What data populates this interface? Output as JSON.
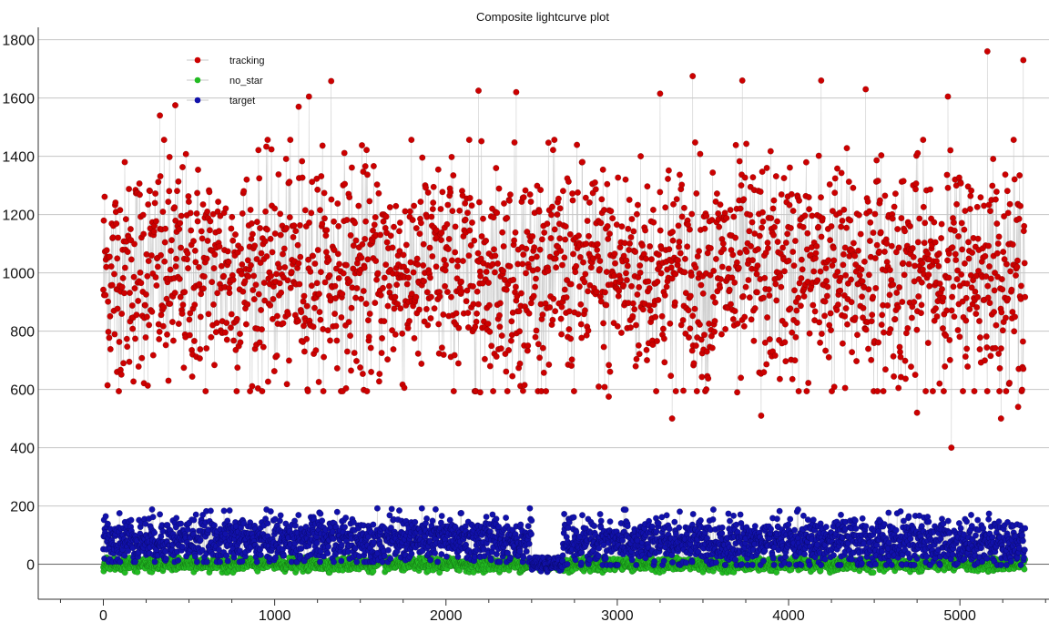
{
  "chart_data": {
    "type": "scatter",
    "title": "Composite lightcurve plot",
    "xlabel": "",
    "ylabel": "",
    "xlim": [
      -380,
      5520
    ],
    "ylim": [
      -120,
      1830
    ],
    "x_ticks": [
      0,
      1000,
      2000,
      3000,
      4000,
      5000
    ],
    "x_tick_labels": [
      "0",
      "1000",
      "2000",
      "3000",
      "4000",
      "5000"
    ],
    "y_ticks": [
      0,
      200,
      400,
      600,
      800,
      1000,
      1200,
      1400,
      1600,
      1800
    ],
    "y_tick_labels": [
      "0",
      "200",
      "400",
      "600",
      "800",
      "1000",
      "1200",
      "1400",
      "1600",
      "1800"
    ],
    "x_minor_step": 250,
    "grid": "horizontal",
    "legend_position": "top-left",
    "series": [
      {
        "name": "tracking",
        "color": "#cc0000",
        "marker": "circle",
        "connected": true,
        "connector_color": "#c8c8c8",
        "x_range": [
          0,
          5380
        ],
        "mean": 1000,
        "typical_range": [
          650,
          1400
        ],
        "outliers": [
          {
            "x": 330,
            "y": 1540
          },
          {
            "x": 420,
            "y": 1575
          },
          {
            "x": 1140,
            "y": 1570
          },
          {
            "x": 1200,
            "y": 1605
          },
          {
            "x": 1330,
            "y": 1658
          },
          {
            "x": 2190,
            "y": 1625
          },
          {
            "x": 2410,
            "y": 1620
          },
          {
            "x": 3250,
            "y": 1615
          },
          {
            "x": 3440,
            "y": 1675
          },
          {
            "x": 3730,
            "y": 1660
          },
          {
            "x": 4190,
            "y": 1660
          },
          {
            "x": 4450,
            "y": 1630
          },
          {
            "x": 4930,
            "y": 1605
          },
          {
            "x": 5160,
            "y": 1760
          },
          {
            "x": 5370,
            "y": 1730
          },
          {
            "x": 3320,
            "y": 500
          },
          {
            "x": 3840,
            "y": 510
          },
          {
            "x": 4950,
            "y": 400
          },
          {
            "x": 5240,
            "y": 500
          },
          {
            "x": 4750,
            "y": 520
          },
          {
            "x": 2450,
            "y": 595
          },
          {
            "x": 2200,
            "y": 590
          },
          {
            "x": 2950,
            "y": 575
          },
          {
            "x": 3520,
            "y": 600
          },
          {
            "x": 1520,
            "y": 598
          },
          {
            "x": 5340,
            "y": 540
          },
          {
            "x": 380,
            "y": 630
          },
          {
            "x": 80,
            "y": 660
          },
          {
            "x": 3700,
            "y": 590
          },
          {
            "x": 4330,
            "y": 605
          }
        ]
      },
      {
        "name": "no_star",
        "color": "#22bb22",
        "marker": "circle",
        "connected": true,
        "connector_color": "#c8c8c8",
        "x_range": [
          0,
          5380
        ],
        "mean": 0,
        "typical_range": [
          -25,
          20
        ]
      },
      {
        "name": "target",
        "color": "#1111aa",
        "marker": "circle",
        "connected": true,
        "connector_color": "#c8c8c8",
        "x_range": [
          0,
          5380
        ],
        "segments": [
          {
            "x_range": [
              0,
              2500
            ],
            "mean": 85,
            "typical_range": [
              20,
              180
            ]
          },
          {
            "x_range": [
              2500,
              2680
            ],
            "mean": 0,
            "typical_range": [
              -25,
              20
            ]
          },
          {
            "x_range": [
              2680,
              5380
            ],
            "mean": 75,
            "typical_range": [
              10,
              175
            ]
          }
        ]
      }
    ]
  }
}
